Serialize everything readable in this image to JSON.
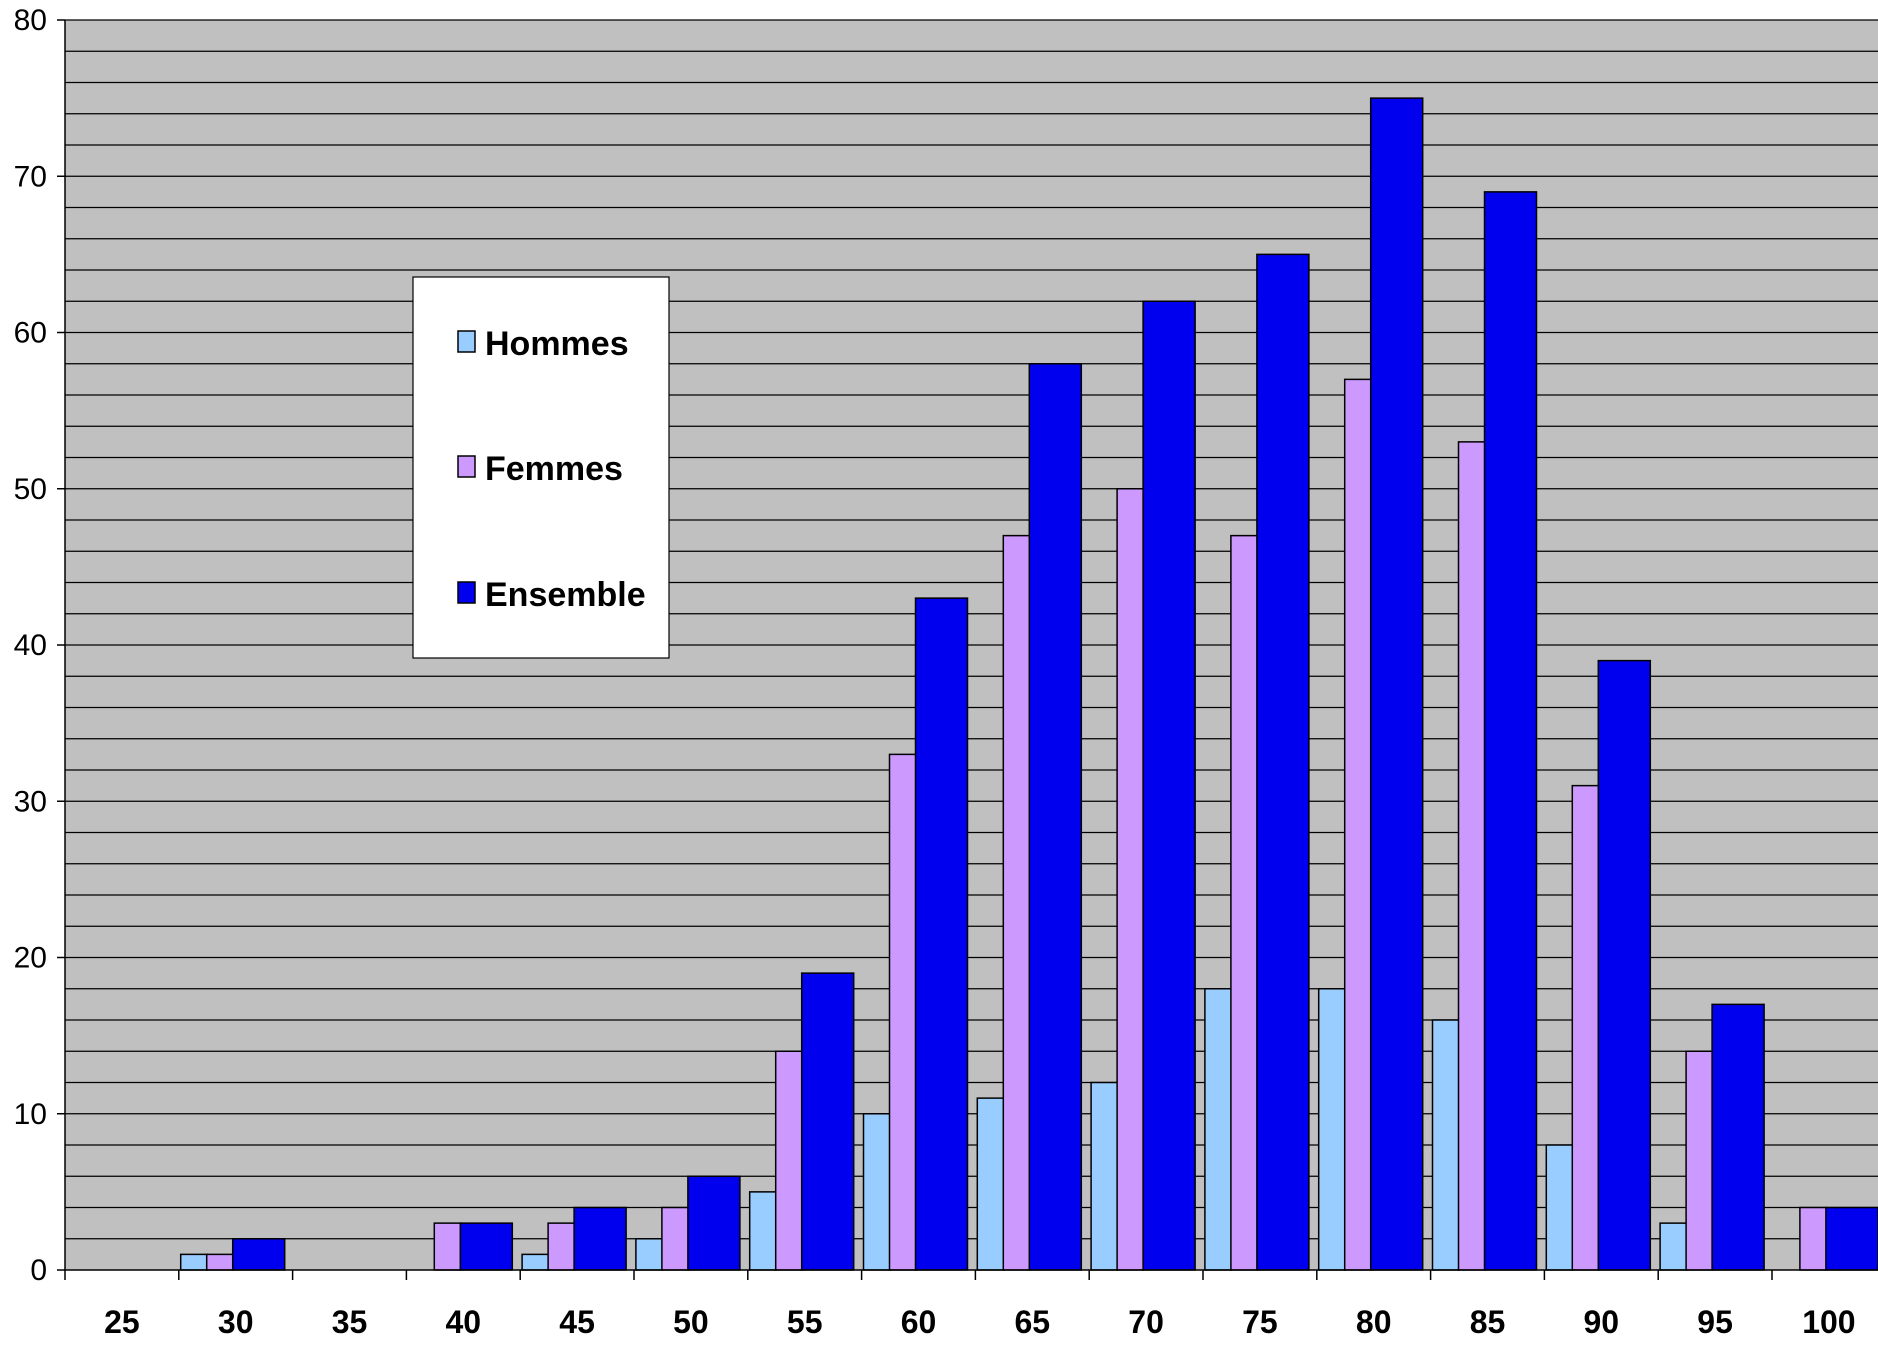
{
  "chart_data": {
    "type": "bar",
    "title": "",
    "xlabel": "",
    "ylabel": "",
    "categories": [
      "25",
      "30",
      "35",
      "40",
      "45",
      "50",
      "55",
      "60",
      "65",
      "70",
      "75",
      "80",
      "85",
      "90",
      "95",
      "100"
    ],
    "series": [
      {
        "name": "Hommes",
        "color": "#99ccff",
        "values": [
          0,
          1,
          0,
          0,
          1,
          2,
          5,
          10,
          11,
          12,
          18,
          18,
          16,
          8,
          3,
          0
        ]
      },
      {
        "name": "Femmes",
        "color": "#cc99ff",
        "values": [
          0,
          1,
          0,
          3,
          3,
          4,
          14,
          33,
          47,
          50,
          47,
          57,
          53,
          31,
          14,
          4
        ]
      },
      {
        "name": "Ensemble",
        "color": "#0000ee",
        "values": [
          0,
          2,
          0,
          3,
          4,
          6,
          19,
          43,
          58,
          62,
          65,
          75,
          69,
          39,
          17,
          4
        ]
      }
    ],
    "ylim": [
      0,
      80
    ],
    "yticks": [
      0,
      10,
      20,
      30,
      40,
      50,
      60,
      70,
      80
    ],
    "grid": "horizontal, every 2 units",
    "plot_background": "#c0c0c0",
    "legend_position": "upper-left inside plot"
  }
}
